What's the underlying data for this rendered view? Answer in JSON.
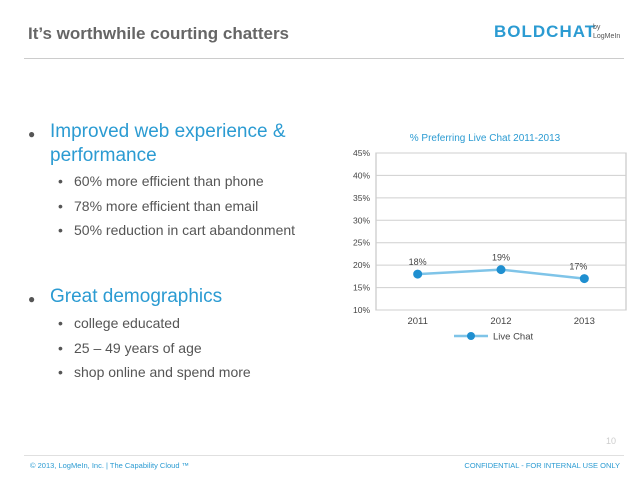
{
  "slide": {
    "title": "It’s worthwhile courting chatters",
    "logo": {
      "brand": "BOLDCHAT",
      "by": "by",
      "company": "LogMeIn"
    }
  },
  "bullets": [
    {
      "heading": "Improved web experience & performance",
      "subs": [
        "60% more efficient than phone",
        "78% more efficient than email",
        "50% reduction in cart abandonment"
      ]
    },
    {
      "heading": "Great demographics",
      "subs": [
        "college educated",
        "25 – 49 years of age",
        "shop online and spend more"
      ]
    }
  ],
  "footer": {
    "left": "© 2013, LogMeIn, Inc.   |    The Capability Cloud ™",
    "right": "CONFIDENTIAL - FOR INTERNAL USE ONLY",
    "page": "10"
  },
  "colors": {
    "accent": "#2b9bd2",
    "line": "#7fc4e8",
    "marker": "#1f8fd0"
  },
  "chart_data": {
    "type": "line",
    "title": "% Preferring Live Chat 2011-2013",
    "categories": [
      "2011",
      "2012",
      "2013"
    ],
    "series": [
      {
        "name": "Live Chat",
        "values": [
          18,
          19,
          17
        ],
        "labels": [
          "18%",
          "19%",
          "17%"
        ]
      }
    ],
    "ylim": [
      10,
      45
    ],
    "yticks": [
      "10%",
      "15%",
      "20%",
      "25%",
      "30%",
      "35%",
      "40%",
      "45%"
    ],
    "grid": true,
    "legend": "bottom"
  }
}
